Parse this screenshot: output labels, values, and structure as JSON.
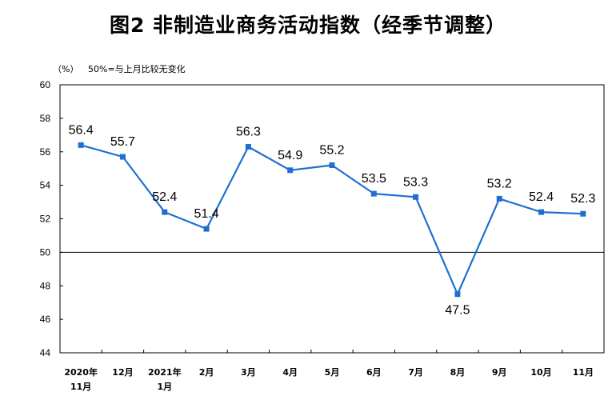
{
  "chart_data": {
    "type": "line",
    "title": "图2  非制造业商务活动指数（经季节调整）",
    "ylabel_unit": "（%）",
    "annotation": "50%=与上月比较无变化",
    "categories": [
      [
        "2020年",
        "11月"
      ],
      [
        "12月"
      ],
      [
        "2021年",
        "1月"
      ],
      [
        "2月"
      ],
      [
        "3月"
      ],
      [
        "4月"
      ],
      [
        "5月"
      ],
      [
        "6月"
      ],
      [
        "7月"
      ],
      [
        "8月"
      ],
      [
        "9月"
      ],
      [
        "10月"
      ],
      [
        "11月"
      ]
    ],
    "values": [
      56.4,
      55.7,
      52.4,
      51.4,
      56.3,
      54.9,
      55.2,
      53.5,
      53.3,
      47.5,
      53.2,
      52.4,
      52.3
    ],
    "data_labels": [
      "56.4",
      "55.7",
      "52.4",
      "51.4",
      "56.3",
      "54.9",
      "55.2",
      "53.5",
      "53.3",
      "47.5",
      "53.2",
      "52.4",
      "52.3"
    ],
    "label_position": [
      "above",
      "above",
      "above",
      "above",
      "above",
      "above",
      "above",
      "above",
      "above",
      "below",
      "above",
      "above",
      "above"
    ],
    "yticks": [
      "44",
      "46",
      "48",
      "50",
      "52",
      "54",
      "56",
      "58",
      "60"
    ],
    "ylim": [
      44,
      60
    ],
    "reference_line": 50,
    "line_color": "#1f6fd1",
    "grid": false,
    "legend": "none"
  }
}
